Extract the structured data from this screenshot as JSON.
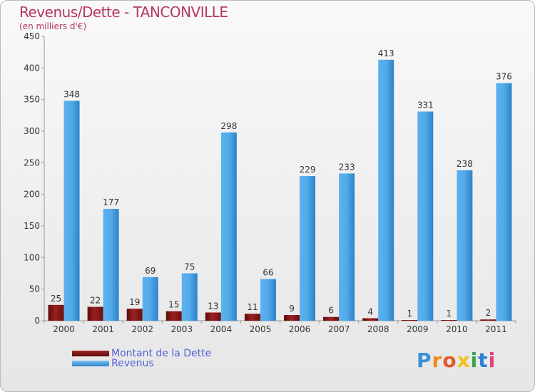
{
  "chart_data": {
    "type": "bar",
    "title": "Revenus/Dette - TANCONVILLE",
    "subtitle": "(en milliers d'€)",
    "categories": [
      "2000",
      "2001",
      "2002",
      "2003",
      "2004",
      "2005",
      "2006",
      "2007",
      "2008",
      "2009",
      "2010",
      "2011"
    ],
    "series": [
      {
        "name": "Montant de la Dette",
        "color": "#7a1111",
        "values": [
          25,
          22,
          19,
          15,
          13,
          11,
          9,
          6,
          4,
          1,
          1,
          2
        ]
      },
      {
        "name": "Revenus",
        "color": "#4ea6e6",
        "values": [
          348,
          177,
          69,
          75,
          298,
          66,
          229,
          233,
          413,
          331,
          238,
          376
        ]
      }
    ],
    "ylim": [
      0,
      450
    ],
    "yticks": [
      0,
      50,
      100,
      150,
      200,
      250,
      300,
      350,
      400,
      450
    ],
    "grid": false,
    "legend": "bottom-left"
  },
  "branding": {
    "logo_letters": [
      "P",
      "r",
      "o",
      "x",
      "i",
      "t",
      "i"
    ],
    "logo_colors": [
      "#3a8fd8",
      "#f08a1c",
      "#e05a2a",
      "#f2c21a",
      "#3aa544",
      "#2c7fd0",
      "#e0407a"
    ]
  }
}
